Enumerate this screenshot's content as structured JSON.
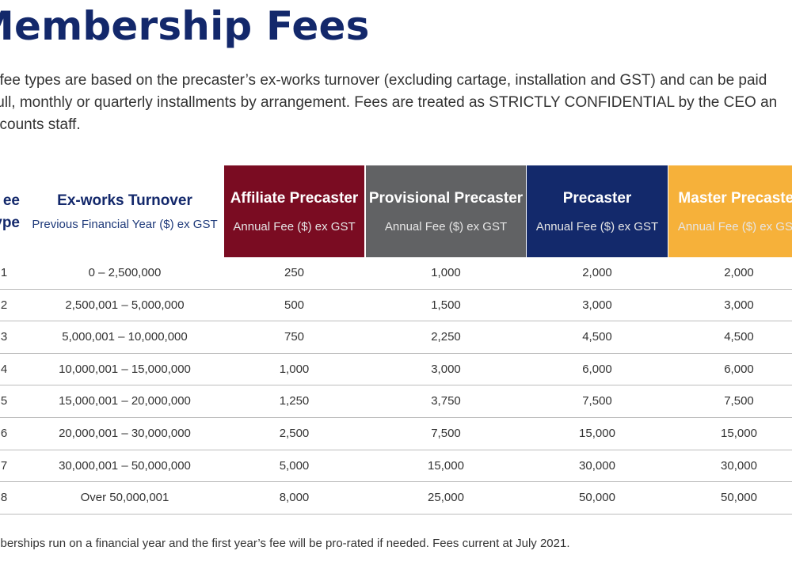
{
  "title": "Membership Fees",
  "intro_lines": [
    "l fee types are based on the precaster’s ex-works turnover (excluding cartage, installation and GST) and can be paid",
    "full, monthly or quarterly installments by arrangement. Fees are treated as STRICTLY CONFIDENTIAL by the CEO an",
    "ccounts staff."
  ],
  "headers": {
    "fee_type_line1": "ee",
    "fee_type_line2": "ype",
    "turnover": {
      "title": "Ex-works Turnover",
      "sub": "Previous Financial Year ($) ex GST"
    },
    "affiliate": {
      "title": "Affiliate Precaster",
      "sub": "Annual Fee ($) ex GST",
      "color": "#7a0c22"
    },
    "provisional": {
      "title": "Provisional Precaster",
      "sub": "Annual Fee ($) ex GST",
      "color": "#616264"
    },
    "precaster": {
      "title": "Precaster",
      "sub": "Annual Fee ($) ex GST",
      "color": "#13296b"
    },
    "master": {
      "title": "Master Precaster",
      "sub": "Annual Fee ($) ex GST",
      "color": "#f6b13a"
    }
  },
  "rows": [
    {
      "type": "1",
      "turnover": "0 – 2,500,000",
      "affiliate": "250",
      "provisional": "1,000",
      "precaster": "2,000",
      "master": "2,000"
    },
    {
      "type": "2",
      "turnover": "2,500,001 – 5,000,000",
      "affiliate": "500",
      "provisional": "1,500",
      "precaster": "3,000",
      "master": "3,000"
    },
    {
      "type": "3",
      "turnover": "5,000,001 – 10,000,000",
      "affiliate": "750",
      "provisional": "2,250",
      "precaster": "4,500",
      "master": "4,500"
    },
    {
      "type": "4",
      "turnover": "10,000,001 – 15,000,000",
      "affiliate": "1,000",
      "provisional": "3,000",
      "precaster": "6,000",
      "master": "6,000"
    },
    {
      "type": "5",
      "turnover": "15,000,001 – 20,000,000",
      "affiliate": "1,250",
      "provisional": "3,750",
      "precaster": "7,500",
      "master": "7,500"
    },
    {
      "type": "6",
      "turnover": "20,000,001 – 30,000,000",
      "affiliate": "2,500",
      "provisional": "7,500",
      "precaster": "15,000",
      "master": "15,000"
    },
    {
      "type": "7",
      "turnover": "30,000,001 – 50,000,000",
      "affiliate": "5,000",
      "provisional": "15,000",
      "precaster": "30,000",
      "master": "30,000"
    },
    {
      "type": "8",
      "turnover": "Over 50,000,001",
      "affiliate": "8,000",
      "provisional": "25,000",
      "precaster": "50,000",
      "master": "50,000"
    }
  ],
  "footnote": "mberships run on a financial year and the first year’s fee will be pro-rated if needed. Fees current at July 2021."
}
